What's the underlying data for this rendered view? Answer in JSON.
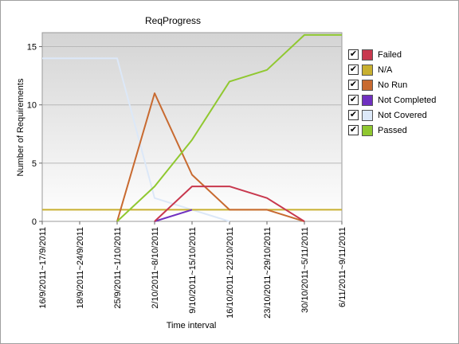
{
  "chart_data": {
    "type": "line",
    "title": "ReqProgress",
    "xlabel": "Time interval",
    "ylabel": "Number of Requirements",
    "ylim": [
      0,
      16.2
    ],
    "yticks": [
      "0",
      "5",
      "10",
      "15"
    ],
    "grid": "horizontal",
    "legend_position": "right",
    "categories": [
      "16/9/2011~17/9/2011",
      "18/9/2011~24/9/2011",
      "25/9/2011~1/10/2011",
      "2/10/2011~8/10/2011",
      "9/10/2011~15/10/2011",
      "16/10/2011~22/10/2011",
      "23/10/2011~29/10/2011",
      "30/10/2011~5/11/2011",
      "6/11/2011~9/11/2011"
    ],
    "series": [
      {
        "name": "Failed",
        "color": "#c8384e",
        "checked": true,
        "values": [
          null,
          null,
          null,
          0,
          3,
          3,
          2,
          0,
          null
        ]
      },
      {
        "name": "N/A",
        "color": "#c8b030",
        "checked": true,
        "values": [
          1,
          1,
          1,
          1,
          1,
          1,
          1,
          1,
          1
        ]
      },
      {
        "name": "No Run",
        "color": "#c86a30",
        "checked": true,
        "values": [
          null,
          null,
          0,
          11,
          4,
          1,
          1,
          0,
          null
        ]
      },
      {
        "name": "Not Completed",
        "color": "#7030c0",
        "checked": true,
        "values": [
          null,
          null,
          null,
          0,
          1,
          null,
          null,
          null,
          null
        ]
      },
      {
        "name": "Not Covered",
        "color": "#dce8f8",
        "checked": true,
        "values": [
          14,
          14,
          14,
          2,
          1,
          0,
          null,
          null,
          null
        ]
      },
      {
        "name": "Passed",
        "color": "#90c830",
        "checked": true,
        "values": [
          null,
          null,
          0,
          3,
          7,
          12,
          13,
          16,
          16
        ]
      }
    ]
  }
}
